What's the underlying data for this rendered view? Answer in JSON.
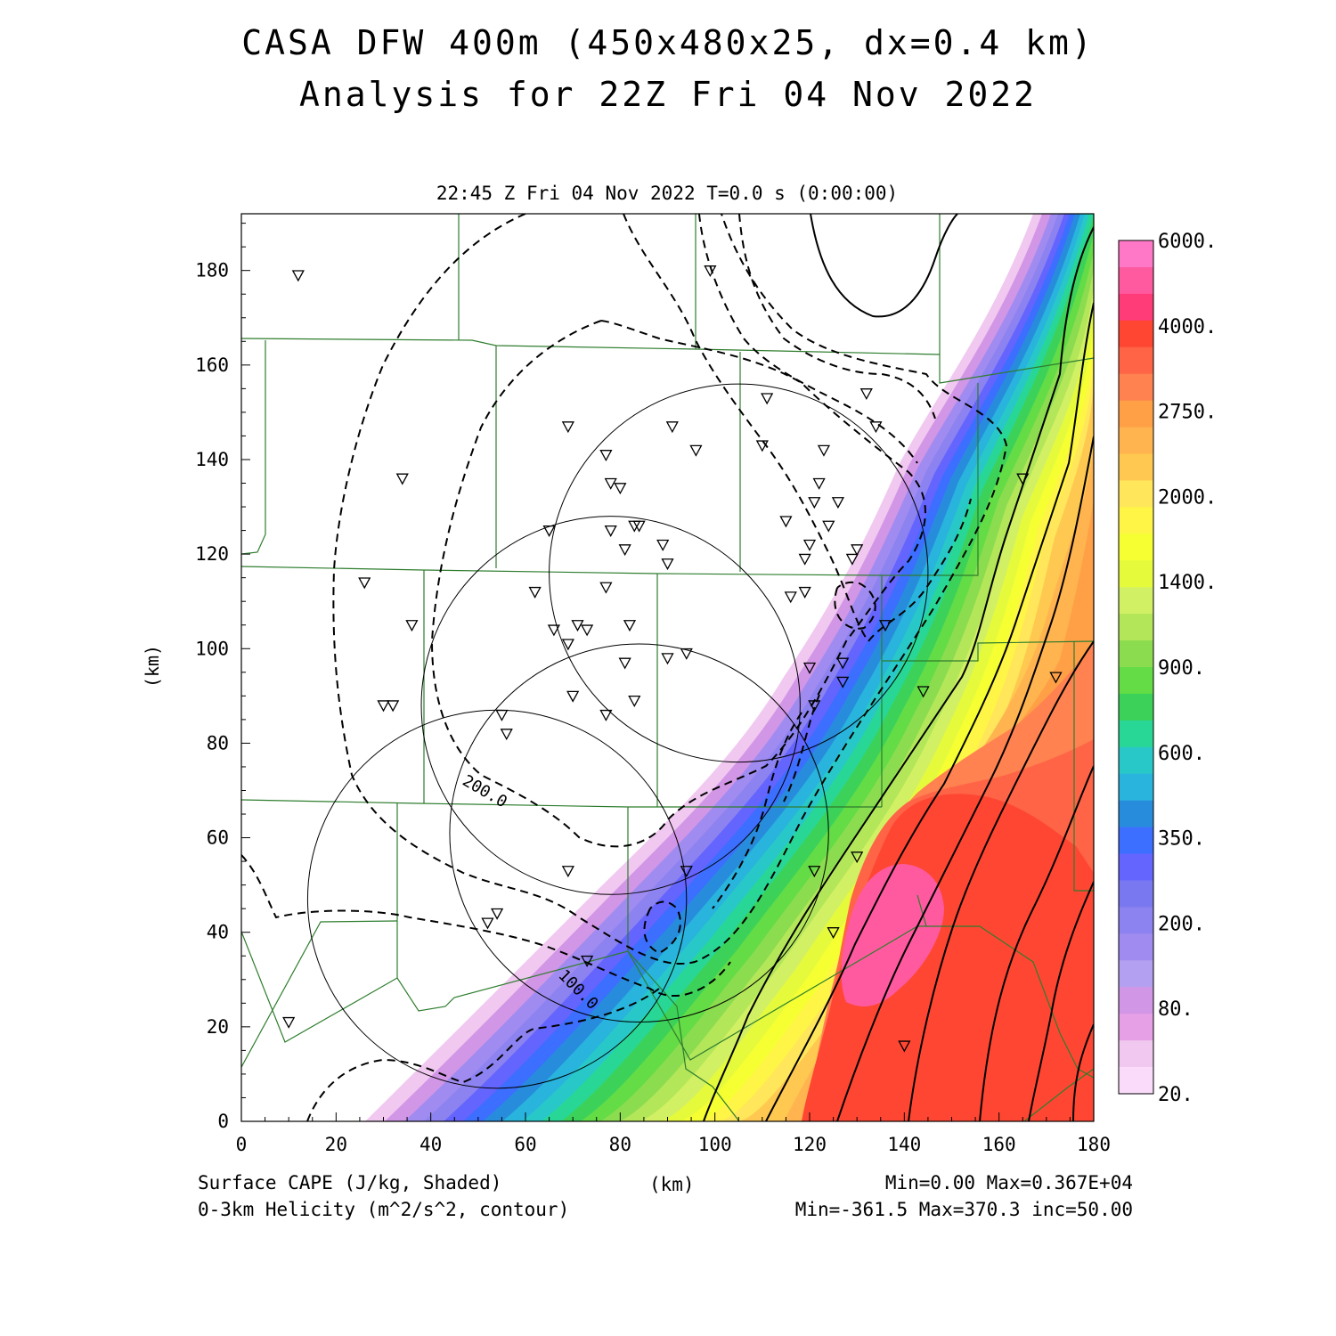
{
  "header": {
    "title_line1": "CASA DFW 400m (450x480x25, dx=0.4 km)",
    "title_line2": "Analysis for 22Z Fri 04 Nov 2022",
    "time_line": "22:45 Z Fri 04 Nov 2022    T=0.0 s (0:00:00)"
  },
  "footer": {
    "field1": "Surface CAPE (J/kg, Shaded)",
    "field2": "0-3km Helicity (m^2/s^2, contour)",
    "xunit": "(km)",
    "stats1": "Min=0.00 Max=0.367E+04",
    "stats2": "Min=-361.5 Max=370.3 inc=50.00"
  },
  "chart_data": {
    "type": "heatmap",
    "title": "CASA DFW 400m (450x480x25, dx=0.4 km)",
    "subtitle": "Analysis for 22Z Fri 04 Nov 2022",
    "xlabel": "(km)",
    "ylabel": "(km)",
    "xlim": [
      0,
      180
    ],
    "ylim": [
      0,
      192
    ],
    "x_ticks": [
      0,
      20,
      40,
      60,
      80,
      100,
      120,
      140,
      160,
      180
    ],
    "y_ticks": [
      0,
      20,
      40,
      60,
      80,
      100,
      120,
      140,
      160,
      180
    ],
    "colorbar": {
      "labels": [
        "6000.",
        "4000.",
        "2750.",
        "2000.",
        "1400.",
        "900.",
        "600.",
        "350.",
        "200.",
        "80.",
        "20."
      ],
      "colors_top_to_bottom": [
        "#ff78c8",
        "#ff5aa0",
        "#ff3c78",
        "#ff4632",
        "#ff6446",
        "#ff8250",
        "#ffa046",
        "#ffb450",
        "#ffc850",
        "#ffe65a",
        "#fff546",
        "#f5ff32",
        "#e6fa3c",
        "#d2f064",
        "#b4e65a",
        "#8cdc50",
        "#64dc46",
        "#3cd25a",
        "#28d796",
        "#28c8c8",
        "#28b4dc",
        "#288cdc",
        "#3c6eff",
        "#6464ff",
        "#7a78f0",
        "#8c82f0",
        "#a08cf0",
        "#b4a0f0",
        "#d296e6",
        "#e6a0e6",
        "#f0c8f0",
        "#fadcfa"
      ]
    },
    "contour_labels": [
      "200.0",
      "100.0"
    ],
    "radar_rings": [
      {
        "center": [
          105,
          116
        ],
        "radius": 40
      },
      {
        "center": [
          78,
          88
        ],
        "radius": 40
      },
      {
        "center": [
          84,
          61
        ],
        "radius": 40
      },
      {
        "center": [
          54,
          47
        ],
        "radius": 40
      }
    ],
    "stations": [
      [
        12,
        179
      ],
      [
        99,
        180
      ],
      [
        34,
        136
      ],
      [
        69,
        147
      ],
      [
        77,
        141
      ],
      [
        91,
        147
      ],
      [
        96,
        142
      ],
      [
        111,
        153
      ],
      [
        132,
        154
      ],
      [
        134,
        147
      ],
      [
        110,
        143
      ],
      [
        123,
        142
      ],
      [
        78,
        135
      ],
      [
        80,
        134
      ],
      [
        122,
        135
      ],
      [
        121,
        131
      ],
      [
        126,
        131
      ],
      [
        65,
        125
      ],
      [
        78,
        125
      ],
      [
        83,
        126
      ],
      [
        84,
        126
      ],
      [
        115,
        127
      ],
      [
        124,
        126
      ],
      [
        81,
        121
      ],
      [
        89,
        122
      ],
      [
        120,
        122
      ],
      [
        130,
        121
      ],
      [
        129,
        119
      ],
      [
        119,
        119
      ],
      [
        90,
        118
      ],
      [
        26,
        114
      ],
      [
        62,
        112
      ],
      [
        77,
        113
      ],
      [
        116,
        111
      ],
      [
        119,
        112
      ],
      [
        36,
        105
      ],
      [
        66,
        104
      ],
      [
        71,
        105
      ],
      [
        73,
        104
      ],
      [
        82,
        105
      ],
      [
        136,
        105
      ],
      [
        69,
        101
      ],
      [
        90,
        98
      ],
      [
        94,
        99
      ],
      [
        81,
        97
      ],
      [
        120,
        96
      ],
      [
        127,
        97
      ],
      [
        127,
        93
      ],
      [
        165,
        136
      ],
      [
        144,
        91
      ],
      [
        172,
        94
      ],
      [
        30,
        88
      ],
      [
        32,
        88
      ],
      [
        70,
        90
      ],
      [
        83,
        89
      ],
      [
        121,
        88
      ],
      [
        55,
        86
      ],
      [
        77,
        86
      ],
      [
        56,
        82
      ],
      [
        121,
        53
      ],
      [
        130,
        56
      ],
      [
        69,
        53
      ],
      [
        94,
        53
      ],
      [
        54,
        44
      ],
      [
        52,
        42
      ],
      [
        125,
        40
      ],
      [
        73,
        34
      ],
      [
        10,
        21
      ],
      [
        140,
        16
      ]
    ]
  }
}
